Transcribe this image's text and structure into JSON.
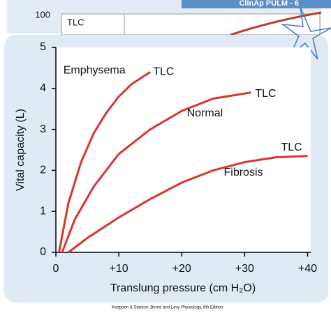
{
  "header": "ClinAp PULM - 6",
  "top_chart": {
    "ytick": 100,
    "label": "TLC"
  },
  "footer": "Koeppen & Stanton: Berne and Levy Physiology, 6th Edition.",
  "chart_data": {
    "type": "line",
    "y_label": "Vital capacity (L)",
    "x_label": "Translung pressure (cm H₂O)",
    "xlim": [
      -1,
      40.5
    ],
    "ylim": [
      0,
      5
    ],
    "xticks": [
      0,
      {
        "value": 10,
        "label": "+10"
      },
      {
        "value": 20,
        "label": "+20"
      },
      {
        "value": 30,
        "label": "+30"
      },
      {
        "value": 40,
        "label": "+40"
      }
    ],
    "yticks": [
      0,
      1,
      2,
      3,
      4,
      5
    ],
    "series": [
      {
        "name": "Emphysema",
        "color": "#d8352c",
        "end_label": "TLC",
        "x": [
          0.5,
          2,
          4,
          6,
          8,
          10,
          12,
          15
        ],
        "values": [
          0,
          1.2,
          2.2,
          2.9,
          3.4,
          3.8,
          4.1,
          4.4
        ]
      },
      {
        "name": "Normal",
        "color": "#d8352c",
        "end_label": "TLC",
        "x": [
          1,
          3,
          6,
          10,
          15,
          20,
          25,
          31
        ],
        "values": [
          0,
          0.8,
          1.6,
          2.4,
          3.0,
          3.45,
          3.75,
          3.9
        ]
      },
      {
        "name": "Fibrosis",
        "color": "#d8352c",
        "end_label": "TLC",
        "x": [
          2,
          5,
          10,
          15,
          20,
          25,
          30,
          35,
          40
        ],
        "values": [
          0,
          0.35,
          0.85,
          1.3,
          1.7,
          2.0,
          2.2,
          2.32,
          2.35
        ]
      }
    ]
  }
}
